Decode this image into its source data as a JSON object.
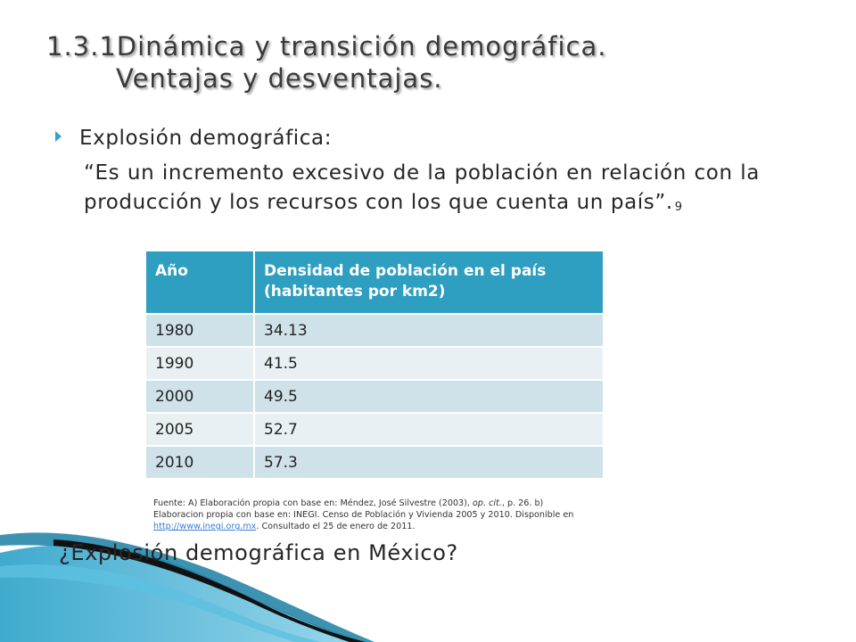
{
  "slide": {
    "title_line1": "1.3.1Dinámica y transición demográfica.",
    "title_line2": "Ventajas y desventajas.",
    "bullet": "Explosión demográfica:",
    "quote": "“Es un incremento excesivo de la población en relación con la producción y los recursos con los que cuenta un país”.",
    "footnote_ref": "9",
    "question": "¿Explosión demográfica en México?"
  },
  "table": {
    "headers": [
      "Año",
      "Densidad de población en el país (habitantes por km2)"
    ],
    "rows": [
      [
        "1980",
        "34.13"
      ],
      [
        "1990",
        "41.5"
      ],
      [
        "2000",
        "49.5"
      ],
      [
        "2005",
        "52.7"
      ],
      [
        "2010",
        "57.3"
      ]
    ]
  },
  "source": {
    "text_a": "Fuente: A) Elaboración propia con base en: Méndez, José Silvestre (2003),",
    "text_a_italic": "op. cit.",
    "text_a_end": ", p. 26. b) Elaboracion propia con base en: INEGI. Censo de Población y Vivienda 2005 y 2010. Disponible en",
    "link": "http://www.inegi.org.mx",
    "text_end": ". Consultado el 25 de enero de 2011."
  },
  "colors": {
    "accent": "#2e9ec1",
    "row_odd": "#cfe2ea",
    "row_even": "#e8f0f4",
    "swoosh": "#2aa1c9"
  }
}
